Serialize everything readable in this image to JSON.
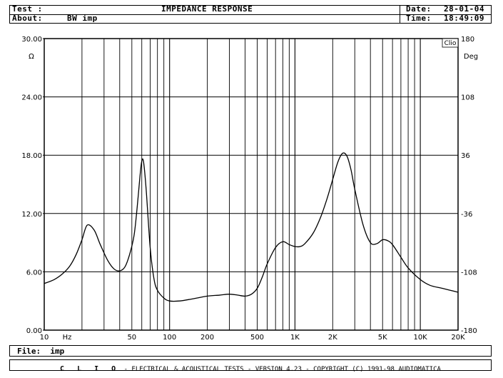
{
  "header": {
    "test_label": "Test :",
    "test_value": "",
    "about_label": "About:",
    "about_value": "BW imp",
    "title": "IMPEDANCE RESPONSE",
    "date_label": "Date:",
    "date_value": "28-01-04",
    "time_label": "Time:",
    "time_value": "18:49:09"
  },
  "file_line": {
    "label": "File:",
    "value": "imp"
  },
  "footer": {
    "brand": "C L I O",
    "text": "- ELECTRICAL & ACOUSTICAL TESTS - VERSION 4.23 - COPYRIGHT (C) 1991-98 AUDIOMATICA"
  },
  "colors": {
    "background": "#ffffff",
    "grid": "#000000",
    "curve": "#000000"
  },
  "chart_data": {
    "type": "line",
    "title": "IMPEDANCE RESPONSE",
    "x_scale": "log",
    "xlim": [
      10,
      20000
    ],
    "ylim": [
      0,
      30
    ],
    "y2lim": [
      -180,
      180
    ],
    "x_unit": "Hz",
    "y_unit": "Ω",
    "y2_unit": "Deg",
    "grid": true,
    "corner_label": "Clio",
    "x_tick_labels": [
      {
        "value": 10,
        "label": "10"
      },
      {
        "value": 50,
        "label": "50"
      },
      {
        "value": 100,
        "label": "100"
      },
      {
        "value": 200,
        "label": "200"
      },
      {
        "value": 500,
        "label": "500"
      },
      {
        "value": 1000,
        "label": "1K"
      },
      {
        "value": 2000,
        "label": "2K"
      },
      {
        "value": 5000,
        "label": "5K"
      },
      {
        "value": 10000,
        "label": "10K"
      },
      {
        "value": 20000,
        "label": "20K"
      }
    ],
    "y_ticks": [
      {
        "value": 0,
        "label": "0.00"
      },
      {
        "value": 6,
        "label": "6.00"
      },
      {
        "value": 12,
        "label": "12.00"
      },
      {
        "value": 18,
        "label": "18.00"
      },
      {
        "value": 24,
        "label": "24.00"
      },
      {
        "value": 30,
        "label": "30.00"
      }
    ],
    "y2_ticks": [
      {
        "value": -180,
        "label": "-180"
      },
      {
        "value": -108,
        "label": "-108"
      },
      {
        "value": -36,
        "label": "-36"
      },
      {
        "value": 36,
        "label": "36"
      },
      {
        "value": 108,
        "label": "108"
      },
      {
        "value": 180,
        "label": "180"
      }
    ],
    "series": [
      {
        "x": [
          10,
          12,
          14,
          16,
          18,
          20,
          22,
          25,
          28,
          32,
          36,
          40,
          44,
          48,
          52,
          55,
          58,
          60,
          62,
          65,
          70,
          75,
          80,
          90,
          100,
          120,
          150,
          200,
          250,
          300,
          350,
          400,
          450,
          500,
          550,
          600,
          700,
          800,
          900,
          1000,
          1100,
          1200,
          1400,
          1600,
          1800,
          2000,
          2200,
          2400,
          2600,
          2800,
          3000,
          3500,
          4000,
          4500,
          5000,
          5500,
          6000,
          7000,
          8000,
          10000,
          12000,
          15000,
          20000
        ],
        "y": [
          4.8,
          5.2,
          5.8,
          6.6,
          7.8,
          9.3,
          10.8,
          10.3,
          8.8,
          7.2,
          6.3,
          6.1,
          6.5,
          7.8,
          9.7,
          12.5,
          15.8,
          17.4,
          17.3,
          14.5,
          8.5,
          5.3,
          4.1,
          3.3,
          3.0,
          3.0,
          3.2,
          3.5,
          3.6,
          3.7,
          3.6,
          3.5,
          3.7,
          4.3,
          5.5,
          6.8,
          8.5,
          9.1,
          8.8,
          8.6,
          8.6,
          8.9,
          10.0,
          11.6,
          13.5,
          15.5,
          17.3,
          18.2,
          17.9,
          16.5,
          14.5,
          10.8,
          9.0,
          8.9,
          9.3,
          9.2,
          8.8,
          7.5,
          6.4,
          5.2,
          4.6,
          4.3,
          3.9
        ]
      }
    ]
  }
}
